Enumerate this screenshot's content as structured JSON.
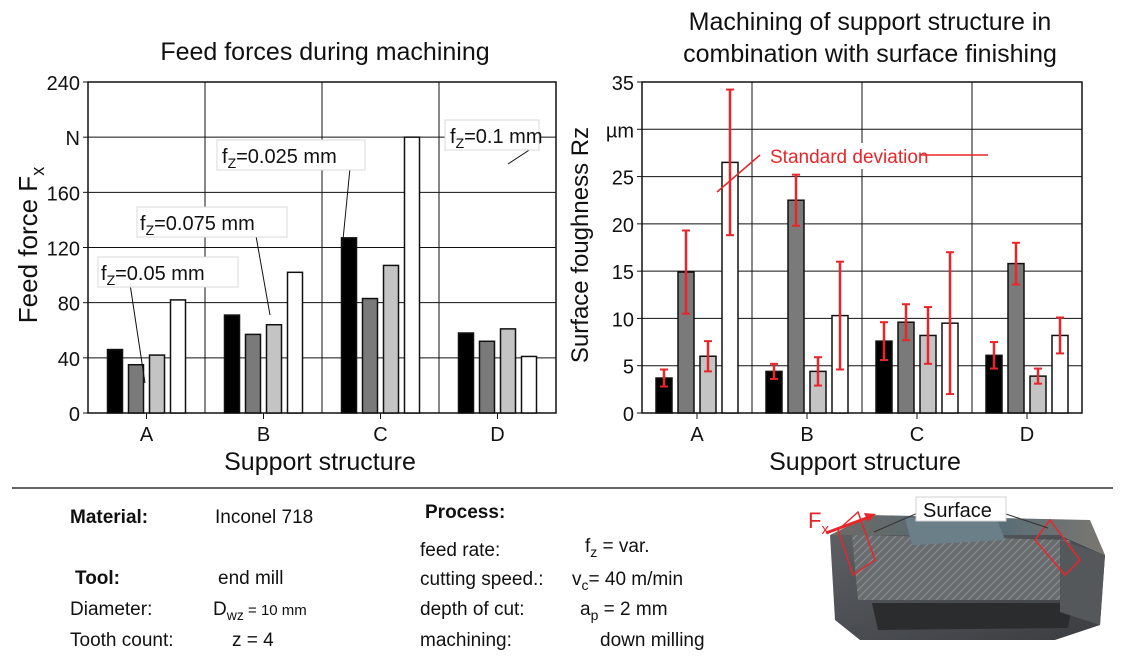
{
  "chart_data": [
    {
      "type": "bar",
      "title": "Feed forces during machining",
      "xlabel": "Support structure",
      "ylabel_main": "Feed force F",
      "ylabel_sub": "x",
      "categories": [
        "A",
        "B",
        "C",
        "D"
      ],
      "ylim": [
        0,
        240
      ],
      "y_ticks": [
        "0",
        "40",
        "80",
        "120",
        "160",
        "N",
        "240"
      ],
      "grid": true,
      "series": [
        {
          "label": "fZ=0.025 mm",
          "label_main": "f",
          "label_sub": "Z",
          "label_rest": "=0.025 mm",
          "color": "#000000",
          "values": [
            46,
            71,
            127,
            58
          ]
        },
        {
          "label": "fZ=0.05 mm",
          "label_main": "f",
          "label_sub": "Z",
          "label_rest": "=0.05 mm",
          "color": "#7a7a7a",
          "values": [
            35,
            57,
            83,
            52
          ]
        },
        {
          "label": "fZ=0.075 mm",
          "label_main": "f",
          "label_sub": "Z",
          "label_rest": "=0.075 mm",
          "color": "#c4c4c4",
          "values": [
            42,
            64,
            107,
            61
          ]
        },
        {
          "label": "fZ=0.1 mm",
          "label_main": "f",
          "label_sub": "Z",
          "label_rest": "=0.1 mm",
          "color": "#ffffff",
          "values": [
            82,
            102,
            200,
            41
          ]
        }
      ]
    },
    {
      "type": "bar",
      "title_line1": "Machining of support structure in",
      "title_line2": "combination with surface finishing",
      "xlabel": "Support structure",
      "ylabel": "Surface foughness Rz",
      "categories": [
        "A",
        "B",
        "C",
        "D"
      ],
      "ylim": [
        0,
        35
      ],
      "y_ticks": [
        "0",
        "5",
        "10",
        "15",
        "20",
        "25",
        "µm",
        "35"
      ],
      "grid": true,
      "annotation": "Standard deviation",
      "series": [
        {
          "color": "#000000",
          "values": [
            3.7,
            4.4,
            7.6,
            6.1
          ],
          "err": [
            0.9,
            0.8,
            2.0,
            1.4
          ]
        },
        {
          "color": "#7a7a7a",
          "values": [
            14.9,
            22.5,
            9.6,
            15.8
          ],
          "err": [
            4.4,
            2.7,
            1.9,
            2.2
          ]
        },
        {
          "color": "#c4c4c4",
          "values": [
            6.0,
            4.4,
            8.2,
            3.9
          ],
          "err": [
            1.6,
            1.5,
            3.0,
            0.8
          ]
        },
        {
          "color": "#ffffff",
          "values": [
            26.5,
            10.3,
            9.5,
            8.2
          ],
          "err": [
            7.7,
            5.7,
            7.5,
            1.9
          ]
        }
      ]
    }
  ],
  "specs": {
    "material_label": "Material:",
    "material_value": "Inconel 718",
    "tool_label": "Tool:",
    "tool_value": "end mill",
    "diameter_label": "Diameter:",
    "diameter_main": "D",
    "diameter_sub": "wz",
    "diameter_rest": " = 10 mm",
    "teeth_label": "Tooth count:",
    "teeth_value": "z = 4",
    "process_label": "Process:",
    "feed_label": "feed rate:",
    "feed_main": "f",
    "feed_sub": "z",
    "feed_rest": " = var.",
    "speed_label": "cutting speed.:",
    "speed_main": "v",
    "speed_sub": "c",
    "speed_rest": "= 40 m/min",
    "depth_label": "depth of cut:",
    "depth_main": "a",
    "depth_sub": "p",
    "depth_rest": " = 2 mm",
    "mach_label": "machining:",
    "mach_value": "down milling"
  },
  "photo": {
    "surface_label": "Surface",
    "force_main": "F",
    "force_sub": "x",
    "accent_color": "#e8262a"
  }
}
